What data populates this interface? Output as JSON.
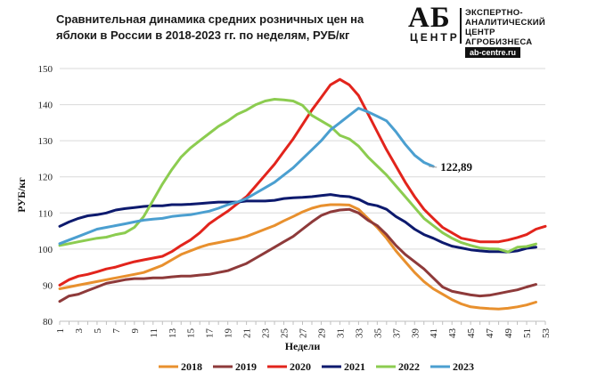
{
  "chart_data": {
    "type": "line",
    "title": "Сравнительная динамика средних розничных цен на яблоки в России в 2018-2023 гг. по неделям, РУБ/кг",
    "xlabel": "Недели",
    "ylabel": "РУБ/кг",
    "ylim": [
      80,
      150
    ],
    "yticks": [
      "80",
      "90",
      "100",
      "110",
      "120",
      "130",
      "140",
      "150"
    ],
    "xlim": [
      1,
      53
    ],
    "xticks": [
      "1",
      "3",
      "5",
      "7",
      "9",
      "11",
      "13",
      "15",
      "17",
      "19",
      "21",
      "23",
      "25",
      "27",
      "29",
      "31",
      "33",
      "35",
      "37",
      "39",
      "41",
      "43",
      "45",
      "47",
      "49",
      "51",
      "53"
    ],
    "grid": "horizontal",
    "legend": "bottom",
    "annotation": {
      "week": 39,
      "value": 122.89,
      "text": "122,89"
    },
    "series": [
      {
        "name": "2018",
        "color": "#e8902e",
        "points": [
          [
            1,
            89
          ],
          [
            2,
            89.5
          ],
          [
            3,
            90
          ],
          [
            4,
            90.5
          ],
          [
            5,
            91
          ],
          [
            6,
            91.5
          ],
          [
            7,
            92
          ],
          [
            8,
            92.5
          ],
          [
            9,
            93
          ],
          [
            10,
            93.5
          ],
          [
            11,
            94.5
          ],
          [
            12,
            95.5
          ],
          [
            13,
            97
          ],
          [
            14,
            98.5
          ],
          [
            15,
            99.5
          ],
          [
            16,
            100.5
          ],
          [
            17,
            101.3
          ],
          [
            18,
            101.8
          ],
          [
            19,
            102.3
          ],
          [
            20,
            102.8
          ],
          [
            21,
            103.5
          ],
          [
            22,
            104.5
          ],
          [
            23,
            105.5
          ],
          [
            24,
            106.5
          ],
          [
            25,
            107.8
          ],
          [
            26,
            109
          ],
          [
            27,
            110.3
          ],
          [
            28,
            111.3
          ],
          [
            29,
            112
          ],
          [
            30,
            112.3
          ],
          [
            31,
            112.3
          ],
          [
            32,
            112.2
          ],
          [
            33,
            111
          ],
          [
            34,
            108.5
          ],
          [
            35,
            106
          ],
          [
            36,
            103
          ],
          [
            37,
            99.5
          ],
          [
            38,
            96.5
          ],
          [
            39,
            93.5
          ],
          [
            40,
            91
          ],
          [
            41,
            89
          ],
          [
            42,
            87.5
          ],
          [
            43,
            86
          ],
          [
            44,
            84.8
          ],
          [
            45,
            84
          ],
          [
            46,
            83.7
          ],
          [
            47,
            83.5
          ],
          [
            48,
            83.4
          ],
          [
            49,
            83.6
          ],
          [
            50,
            84
          ],
          [
            51,
            84.5
          ],
          [
            52,
            85.3
          ]
        ]
      },
      {
        "name": "2019",
        "color": "#8e3a3a",
        "points": [
          [
            1,
            85.5
          ],
          [
            2,
            87
          ],
          [
            3,
            87.5
          ],
          [
            4,
            88.5
          ],
          [
            5,
            89.5
          ],
          [
            6,
            90.5
          ],
          [
            7,
            91
          ],
          [
            8,
            91.5
          ],
          [
            9,
            91.8
          ],
          [
            10,
            91.8
          ],
          [
            11,
            92
          ],
          [
            12,
            92
          ],
          [
            13,
            92.3
          ],
          [
            14,
            92.5
          ],
          [
            15,
            92.5
          ],
          [
            16,
            92.8
          ],
          [
            17,
            93
          ],
          [
            18,
            93.5
          ],
          [
            19,
            94
          ],
          [
            20,
            95
          ],
          [
            21,
            96
          ],
          [
            22,
            97.5
          ],
          [
            23,
            99
          ],
          [
            24,
            100.5
          ],
          [
            25,
            102
          ],
          [
            26,
            103.5
          ],
          [
            27,
            105.5
          ],
          [
            28,
            107.5
          ],
          [
            29,
            109.3
          ],
          [
            30,
            110.3
          ],
          [
            31,
            110.8
          ],
          [
            32,
            111
          ],
          [
            33,
            110
          ],
          [
            34,
            108
          ],
          [
            35,
            106.5
          ],
          [
            36,
            104
          ],
          [
            37,
            101
          ],
          [
            38,
            98.5
          ],
          [
            39,
            96.5
          ],
          [
            40,
            94.5
          ],
          [
            41,
            92
          ],
          [
            42,
            89.5
          ],
          [
            43,
            88.3
          ],
          [
            44,
            87.8
          ],
          [
            45,
            87.3
          ],
          [
            46,
            87
          ],
          [
            47,
            87.2
          ],
          [
            48,
            87.7
          ],
          [
            49,
            88.2
          ],
          [
            50,
            88.7
          ],
          [
            51,
            89.5
          ],
          [
            52,
            90.2
          ]
        ]
      },
      {
        "name": "2020",
        "color": "#e2241c",
        "points": [
          [
            1,
            90
          ],
          [
            2,
            91.5
          ],
          [
            3,
            92.5
          ],
          [
            4,
            93
          ],
          [
            5,
            93.7
          ],
          [
            6,
            94.5
          ],
          [
            7,
            95
          ],
          [
            8,
            95.8
          ],
          [
            9,
            96.5
          ],
          [
            10,
            97
          ],
          [
            11,
            97.5
          ],
          [
            12,
            98
          ],
          [
            13,
            99.3
          ],
          [
            14,
            101
          ],
          [
            15,
            102.5
          ],
          [
            16,
            104.5
          ],
          [
            17,
            107
          ],
          [
            18,
            108.8
          ],
          [
            19,
            110.5
          ],
          [
            20,
            112.5
          ],
          [
            21,
            114.5
          ],
          [
            22,
            117.5
          ],
          [
            23,
            120.5
          ],
          [
            24,
            123.5
          ],
          [
            25,
            127
          ],
          [
            26,
            130.5
          ],
          [
            27,
            134.5
          ],
          [
            28,
            138.5
          ],
          [
            29,
            142
          ],
          [
            30,
            145.5
          ],
          [
            31,
            147
          ],
          [
            32,
            145.5
          ],
          [
            33,
            142.5
          ],
          [
            34,
            137.5
          ],
          [
            35,
            132.5
          ],
          [
            36,
            127.5
          ],
          [
            37,
            123
          ],
          [
            38,
            118.5
          ],
          [
            39,
            114.5
          ],
          [
            40,
            111
          ],
          [
            41,
            108.5
          ],
          [
            42,
            106
          ],
          [
            43,
            104.5
          ],
          [
            44,
            103
          ],
          [
            45,
            102.5
          ],
          [
            46,
            102
          ],
          [
            47,
            102
          ],
          [
            48,
            102
          ],
          [
            49,
            102.5
          ],
          [
            50,
            103.2
          ],
          [
            51,
            104
          ],
          [
            52,
            105.5
          ],
          [
            53,
            106.3
          ]
        ]
      },
      {
        "name": "2021",
        "color": "#0d1a6e",
        "points": [
          [
            1,
            106.3
          ],
          [
            2,
            107.5
          ],
          [
            3,
            108.5
          ],
          [
            4,
            109.2
          ],
          [
            5,
            109.5
          ],
          [
            6,
            110
          ],
          [
            7,
            110.8
          ],
          [
            8,
            111.2
          ],
          [
            9,
            111.5
          ],
          [
            10,
            111.8
          ],
          [
            11,
            112
          ],
          [
            12,
            112
          ],
          [
            13,
            112.3
          ],
          [
            14,
            112.3
          ],
          [
            15,
            112.4
          ],
          [
            16,
            112.6
          ],
          [
            17,
            112.8
          ],
          [
            18,
            113
          ],
          [
            19,
            113
          ],
          [
            20,
            113
          ],
          [
            21,
            113.3
          ],
          [
            22,
            113.3
          ],
          [
            23,
            113.3
          ],
          [
            24,
            113.5
          ],
          [
            25,
            114
          ],
          [
            26,
            114.2
          ],
          [
            27,
            114.3
          ],
          [
            28,
            114.5
          ],
          [
            29,
            114.8
          ],
          [
            30,
            115.1
          ],
          [
            31,
            114.7
          ],
          [
            32,
            114.5
          ],
          [
            33,
            113.8
          ],
          [
            34,
            112.5
          ],
          [
            35,
            112
          ],
          [
            36,
            111
          ],
          [
            37,
            109
          ],
          [
            38,
            107.5
          ],
          [
            39,
            105.5
          ],
          [
            40,
            104
          ],
          [
            41,
            103
          ],
          [
            42,
            101.8
          ],
          [
            43,
            100.8
          ],
          [
            44,
            100.3
          ],
          [
            45,
            99.8
          ],
          [
            46,
            99.5
          ],
          [
            47,
            99.3
          ],
          [
            48,
            99.3
          ],
          [
            49,
            99.2
          ],
          [
            50,
            99.5
          ],
          [
            51,
            100.2
          ],
          [
            52,
            100.5
          ]
        ]
      },
      {
        "name": "2022",
        "color": "#8ccc50",
        "points": [
          [
            1,
            101
          ],
          [
            2,
            101.5
          ],
          [
            3,
            102
          ],
          [
            4,
            102.5
          ],
          [
            5,
            103
          ],
          [
            6,
            103.3
          ],
          [
            7,
            104
          ],
          [
            8,
            104.5
          ],
          [
            9,
            106
          ],
          [
            10,
            109
          ],
          [
            11,
            113.5
          ],
          [
            12,
            118
          ],
          [
            13,
            122
          ],
          [
            14,
            125.5
          ],
          [
            15,
            128
          ],
          [
            16,
            130
          ],
          [
            17,
            132
          ],
          [
            18,
            134
          ],
          [
            19,
            135.5
          ],
          [
            20,
            137.3
          ],
          [
            21,
            138.5
          ],
          [
            22,
            140
          ],
          [
            23,
            141
          ],
          [
            24,
            141.5
          ],
          [
            25,
            141.3
          ],
          [
            26,
            141
          ],
          [
            27,
            139.8
          ],
          [
            28,
            137
          ],
          [
            29,
            135.5
          ],
          [
            30,
            134
          ],
          [
            31,
            131.5
          ],
          [
            32,
            130.5
          ],
          [
            33,
            128.5
          ],
          [
            34,
            125.5
          ],
          [
            35,
            123
          ],
          [
            36,
            120.5
          ],
          [
            37,
            117.5
          ],
          [
            38,
            114.5
          ],
          [
            39,
            111.5
          ],
          [
            40,
            108.5
          ],
          [
            41,
            106.5
          ],
          [
            42,
            104.5
          ],
          [
            43,
            103
          ],
          [
            44,
            101.8
          ],
          [
            45,
            101
          ],
          [
            46,
            100.3
          ],
          [
            47,
            100.1
          ],
          [
            48,
            100
          ],
          [
            49,
            99.2
          ],
          [
            50,
            100.5
          ],
          [
            51,
            100.7
          ],
          [
            52,
            101.4
          ]
        ]
      },
      {
        "name": "2023",
        "color": "#4b9fd0",
        "points": [
          [
            1,
            101.5
          ],
          [
            2,
            102.5
          ],
          [
            3,
            103.5
          ],
          [
            4,
            104.5
          ],
          [
            5,
            105.5
          ],
          [
            6,
            106
          ],
          [
            7,
            106.5
          ],
          [
            8,
            107
          ],
          [
            9,
            107.5
          ],
          [
            10,
            108
          ],
          [
            11,
            108.3
          ],
          [
            12,
            108.5
          ],
          [
            13,
            109
          ],
          [
            14,
            109.3
          ],
          [
            15,
            109.5
          ],
          [
            16,
            110
          ],
          [
            17,
            110.5
          ],
          [
            18,
            111.3
          ],
          [
            19,
            112.3
          ],
          [
            20,
            113
          ],
          [
            21,
            114
          ],
          [
            22,
            115.5
          ],
          [
            23,
            117
          ],
          [
            24,
            118.5
          ],
          [
            25,
            120.5
          ],
          [
            26,
            122.5
          ],
          [
            27,
            125
          ],
          [
            28,
            127.5
          ],
          [
            29,
            130
          ],
          [
            30,
            133
          ],
          [
            31,
            135
          ],
          [
            32,
            137
          ],
          [
            33,
            139
          ],
          [
            34,
            138
          ],
          [
            35,
            136.8
          ],
          [
            36,
            135.5
          ],
          [
            37,
            132.5
          ],
          [
            38,
            129
          ],
          [
            39,
            126
          ],
          [
            40,
            124
          ],
          [
            41,
            122.89
          ]
        ]
      }
    ]
  }
}
